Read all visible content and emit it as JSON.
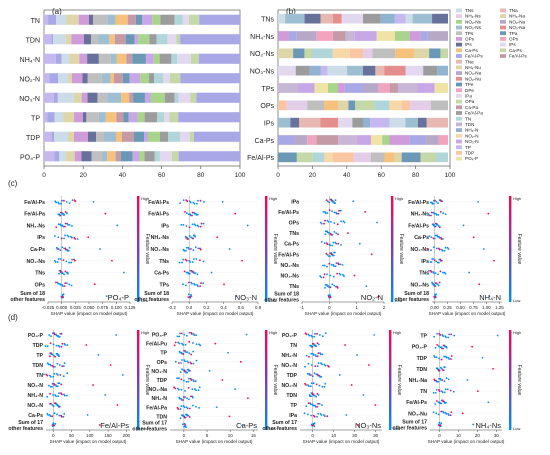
{
  "colors": {
    "TNs": "#ccdce8",
    "NH4-Ns": "#e3cde8",
    "NO2-Ns": "#a8d48b",
    "NO3-Ns": "#9ebfd1",
    "TPs": "#bfbfbf",
    "OPs": "#cf9cd9",
    "IPs": "#67719c",
    "Ca-Ps": "#f5c17c",
    "Fe/Al-Ps": "#a9a8e6",
    "TNe": "#e7b7b1",
    "NH4-Nu": "#ded6a8",
    "NO3-Na": "#b6a9c8",
    "NO3-Nu": "#e58e8e",
    "TPe": "#6b99b5",
    "DPe": "#f2a3bd",
    "IPa": "#e2d8ef",
    "OPa": "#c5d8a8",
    "TN": "#c49aa7",
    "TDN": "#9c9c9c",
    "NH4-N": "#b1d6d9",
    "NO3-N": "#c8b6d6",
    "NO2-N": "#8fb3d1",
    "TP": "#f6d8a9",
    "TDP": "#c8a7e6",
    "PO4-P": "#c5b8ef",
    "NO2-Nu": "#f9c5a3",
    "NH4-Na": "#f0e3a6"
  },
  "panel_a": {
    "label": "(a)",
    "chart_data": {
      "type": "bar",
      "orientation": "horizontal",
      "stacked": true,
      "categories": [
        "TN",
        "TDN",
        "NH₄-N",
        "NO₂-N",
        "NO₃-N",
        "TP",
        "TDP",
        "PO₄-P"
      ],
      "ticks": [
        0,
        20,
        40,
        60,
        80,
        100
      ],
      "xlim": [
        0,
        100
      ]
    }
  },
  "panel_b": {
    "label": "(b)",
    "chart_data": {
      "type": "bar",
      "orientation": "horizontal",
      "stacked": true,
      "categories": [
        "TNs",
        "NH₄-Ns",
        "NO₂-Ns",
        "NO₃-Ns",
        "TPs",
        "OPs",
        "IPs",
        "Ca-Ps",
        "Fe/Al-Ps"
      ],
      "ticks": [
        0,
        20,
        40,
        60,
        80,
        100
      ],
      "xlim": [
        0,
        100
      ]
    },
    "legend_col1": [
      "TNs",
      "NH₄-Ns",
      "NO₂-Ns",
      "NO₃-Ns",
      "TPs",
      "OPs",
      "IPs",
      "Ca-Ps",
      "Fe/Al-Ps",
      "TNe",
      "NH₄-Nu",
      "NO₃-Na",
      "NO₂-Nu",
      "TPe",
      "DPe",
      "IPa",
      "OPa",
      "Ca-Pa",
      "Fe/Al-Pa",
      "TN",
      "TDN",
      "NH₄-N",
      "NO₂-N",
      "NO₃-N",
      "TP",
      "TDP",
      "PO₄-P"
    ],
    "legend_col2": [
      "TNa",
      "NH₄-Na",
      "NO₂-Na",
      "NO₃-Na",
      "TPa",
      "OPs",
      "IPs",
      "Ca-Ps",
      "Fe/Al-Ps"
    ]
  },
  "panel_c": {
    "label": "(c)",
    "xlabel": "SHAP value (impact on model output)",
    "colorbar": {
      "high": "High",
      "low": "Low",
      "title": "Feature value"
    },
    "plots": [
      {
        "target": "PO₄-P",
        "features": [
          "Fe/Al-Ps",
          "Fe/Al-Pa",
          "NH₄-Ns",
          "IPs",
          "Ca-Ps",
          "NO₃-Ns",
          "TNs",
          "OPs",
          "Sum of 18\nother features"
        ],
        "ticks": [
          "-0.025",
          "0.000",
          "0.025",
          "0.050",
          "0.075",
          "0.100",
          "0.125"
        ],
        "xlim": [
          -0.025,
          0.125
        ]
      },
      {
        "target": "NO₃-N",
        "features": [
          "Fe/Al-Ps",
          "Fe/Al-Ps",
          "IPs",
          "NH₄-Ns",
          "NO₃-Ns",
          "TNs",
          "Ca-Ps",
          "TPs",
          "Sum of 18\nother features"
        ],
        "ticks": [
          "-0.2",
          "0.0",
          "0.2",
          "0.4",
          "0.6",
          "0.8"
        ],
        "xlim": [
          -0.2,
          0.8
        ]
      },
      {
        "target": "NO₂-N",
        "features": [
          "IPa",
          "Fe/Al-Ps",
          "OPs",
          "TNs",
          "Ca-Ps",
          "Fe/Al-Ps",
          "NO₃-Ns",
          "NO₂-Ns",
          "TNs",
          "Sum of 18\nother features"
        ],
        "ticks": [
          "-1",
          "0",
          "1",
          "2"
        ],
        "xlim": [
          -1,
          2
        ]
      },
      {
        "target": "NH₄-N",
        "features": [
          "Fe/Al-Ps",
          "NH₄-Ns",
          "Fe/Al-Ps",
          "Ca-Ps",
          "NO₃-Ns",
          "IPs",
          "TNs",
          "NO₂-Ns",
          "Sum of 18\nother features"
        ],
        "ticks": [
          "0.00",
          "0.25",
          "0.50",
          "0.75",
          "1.00",
          "1.25"
        ],
        "xlim": [
          -0.05,
          1.3
        ]
      }
    ]
  },
  "panel_d": {
    "label": "(d)",
    "xlabel": "SHAP value (impact on model output)",
    "colorbar": {
      "high": "High",
      "low": "Low",
      "title": "Feature value"
    },
    "plots": [
      {
        "target": "Fe/Al-Ps",
        "features": [
          "PO₄-P",
          "TDP",
          "TP",
          "TDN",
          "TN",
          "NO₂-N",
          "NH₄-N",
          "NO₃-N",
          "Ca-Ps",
          "Sum of 17\nother features"
        ],
        "ticks": [
          "0",
          "50",
          "100",
          "150",
          "200"
        ],
        "xlim": [
          -20,
          210
        ]
      },
      {
        "target": "Ca-Ps",
        "features": [
          "PO₄-P",
          "Fe/Al-Pu",
          "TP",
          "OPs",
          "NO₃-N",
          "TDP",
          "NO₃-Na",
          "NH₄-N",
          "Fe/Al-Pa",
          "TDN",
          "Sum of 17\nother features"
        ],
        "ticks": [
          "0",
          "5",
          "10",
          "15"
        ],
        "xlim": [
          -3,
          16
        ]
      },
      {
        "target": "NO₃-Ns",
        "features": [
          "PO₄-P",
          "TN",
          "NH₄-N",
          "NO₃-N",
          "TDP",
          "NO₂-N",
          "TDN",
          "TP",
          "IPa",
          "Sum of 17\nother features"
        ],
        "ticks": [
          "0",
          "10",
          "20",
          "30"
        ],
        "xlim": [
          -6,
          33
        ]
      },
      {
        "target": "NH₄-Ns",
        "features": [
          "TP",
          "PO₄-P",
          "TDP",
          "TDN",
          "NH₄-Na",
          "TN",
          "Fe/Al-Ps",
          "NO₃-Nu",
          "Sum of 17\nother features"
        ],
        "ticks": [
          "0",
          "10",
          "20",
          "30"
        ],
        "xlim": [
          -5,
          33
        ]
      }
    ]
  }
}
